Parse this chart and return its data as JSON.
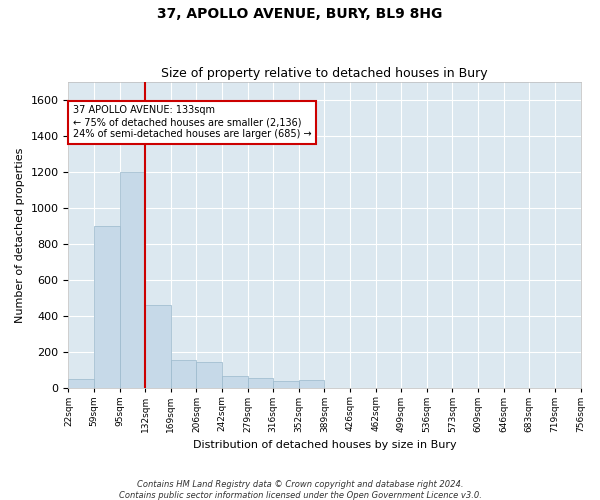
{
  "title1": "37, APOLLO AVENUE, BURY, BL9 8HG",
  "title2": "Size of property relative to detached houses in Bury",
  "xlabel": "Distribution of detached houses by size in Bury",
  "ylabel": "Number of detached properties",
  "footer1": "Contains HM Land Registry data © Crown copyright and database right 2024.",
  "footer2": "Contains public sector information licensed under the Open Government Licence v3.0.",
  "annotation_line1": "37 APOLLO AVENUE: 133sqm",
  "annotation_line2": "← 75% of detached houses are smaller (2,136)",
  "annotation_line3": "24% of semi-detached houses are larger (685) →",
  "property_size_idx": 3,
  "bar_color": "#c6d9e8",
  "bar_edge_color": "#9ab8cc",
  "vline_color": "#cc0000",
  "background_color": "#dce8f0",
  "annotation_box_edgecolor": "#cc0000",
  "ylim": [
    0,
    1700
  ],
  "yticks": [
    0,
    200,
    400,
    600,
    800,
    1000,
    1200,
    1400,
    1600
  ],
  "bin_labels": [
    "22sqm",
    "59sqm",
    "95sqm",
    "132sqm",
    "169sqm",
    "206sqm",
    "242sqm",
    "279sqm",
    "316sqm",
    "352sqm",
    "389sqm",
    "426sqm",
    "462sqm",
    "499sqm",
    "536sqm",
    "573sqm",
    "609sqm",
    "646sqm",
    "683sqm",
    "719sqm",
    "756sqm"
  ],
  "n_bins": 21,
  "bar_heights": [
    50,
    900,
    1200,
    460,
    155,
    145,
    70,
    55,
    40,
    45,
    0,
    0,
    0,
    0,
    0,
    0,
    0,
    0,
    0,
    0
  ],
  "title1_fontsize": 10,
  "title2_fontsize": 9,
  "ylabel_fontsize": 8,
  "xlabel_fontsize": 8,
  "ytick_fontsize": 8,
  "xtick_fontsize": 6.5,
  "annotation_fontsize": 7,
  "footer_fontsize": 6
}
